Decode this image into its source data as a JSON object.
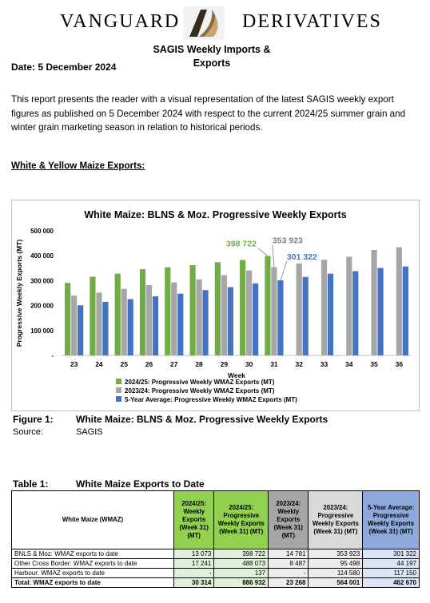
{
  "header": {
    "brand_left": "VANGUARD",
    "brand_right": "DERIVATIVES",
    "report_title_line1": "SAGIS Weekly Imports &",
    "report_title_line2": "Exports",
    "date": "Date:  5 December 2024"
  },
  "intro": "This report presents the reader with a visual representation of the latest SAGIS weekly export figures as published on 5 December 2024 with respect to the current 2024/25 summer grain and winter grain marketing season in relation to historical periods.",
  "section_heading": "White & Yellow Maize Exports:",
  "chart_data": {
    "type": "bar",
    "title": "White Maize: BLNS & Moz. Progressive Weekly Exports",
    "xlabel": "Week",
    "ylabel": "Progressive Weekly Exports (MT)",
    "ylim": [
      0,
      500000
    ],
    "yticks": [
      "-",
      "100 000",
      "200 000",
      "300 000",
      "400 000",
      "500 000"
    ],
    "categories": [
      "23",
      "24",
      "25",
      "26",
      "27",
      "28",
      "29",
      "30",
      "31",
      "32",
      "33",
      "34",
      "35",
      "36"
    ],
    "series": [
      {
        "name": "2024/25: Progressive Weekly WMAZ Exports (MT)",
        "color": "#70ad47",
        "values": [
          291000,
          316000,
          328000,
          346000,
          354000,
          362000,
          374000,
          383000,
          398722,
          null,
          null,
          null,
          null,
          null
        ]
      },
      {
        "name": "2023/24: Progressive Weekly WMAZ Exports (MT)",
        "color": "#a6a6a6",
        "values": [
          240000,
          252000,
          267000,
          282000,
          293000,
          305000,
          322000,
          341000,
          353923,
          369000,
          384000,
          396000,
          423000,
          434000
        ]
      },
      {
        "name": "5-Year Average: Progressive Weekly WMAZ Exports (MT)",
        "color": "#4472c4",
        "values": [
          201000,
          215000,
          226000,
          237000,
          248000,
          262000,
          274000,
          289000,
          301322,
          315000,
          328000,
          338000,
          351000,
          357000
        ]
      }
    ],
    "annotations": [
      {
        "text": "398 722",
        "series": 0,
        "color": "#70ad47"
      },
      {
        "text": "353 923",
        "series": 1,
        "color": "#7f7f7f"
      },
      {
        "text": "301 322",
        "series": 2,
        "color": "#4472c4"
      }
    ],
    "legend_position": "bottom",
    "grid": false
  },
  "figure": {
    "label": "Figure 1:",
    "caption": "White Maize: BLNS & Moz. Progressive Weekly Exports",
    "source_label": "Source:",
    "source": "SAGIS"
  },
  "table": {
    "label": "Table 1:",
    "caption": "White Maize Exports to Date",
    "headers": [
      "White Maize (WMAZ)",
      "2024/25: Weekly Exports (Week 31) (MT)",
      "2024/25: Progressive Weekly Exports (Week 31) (MT)",
      "2023/24: Weekly Exports (Week 31) (MT)",
      "2023/24: Progressive Weekly Exports (Week 31) (MT)",
      "5-Year Average: Progressive Weekly Exports (Week 31) (MT)"
    ],
    "rows": [
      [
        "BNLS & Moz: WMAZ exports to date",
        "13 073",
        "398 722",
        "14 781",
        "353 923",
        "301 322"
      ],
      [
        "Other Cross Border: WMAZ exports to date",
        "17 241",
        "488 073",
        "8 487",
        "95 498",
        "44 197"
      ],
      [
        "Harbour: WMAZ exports to date",
        "-",
        "137",
        "-",
        "114 580",
        "117 150"
      ],
      [
        "Total: WMAZ exports to date",
        "30 314",
        "886 932",
        "23 268",
        "564 001",
        "462 670"
      ]
    ]
  }
}
